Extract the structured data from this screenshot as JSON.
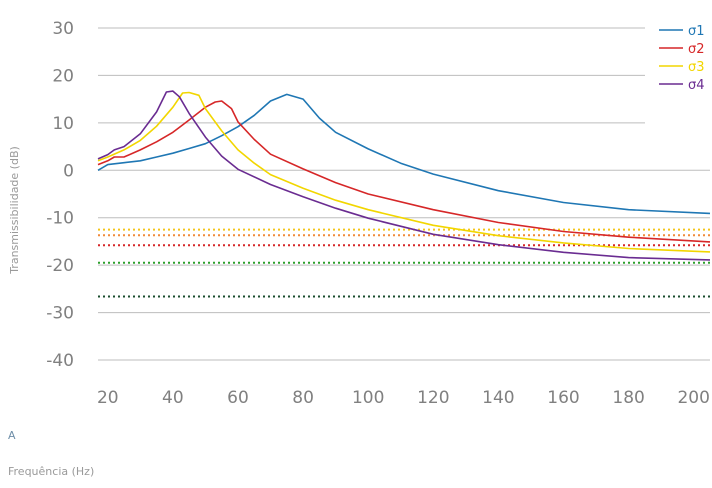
{
  "panel_letter": "A",
  "colors": {
    "grid": "#bdbdbd",
    "tick": "#8c8c8c",
    "axis_label": "#9a9a9a"
  },
  "chart_data": {
    "type": "line",
    "xlabel": "Frequência (Hz)",
    "ylabel": "Transmissibilidade (dB)",
    "xlim": [
      17,
      205
    ],
    "ylim": [
      -40,
      30
    ],
    "xticks": [
      20,
      40,
      60,
      80,
      100,
      120,
      140,
      160,
      180,
      200
    ],
    "yticks": [
      30,
      20,
      10,
      0,
      -10,
      -20,
      -30,
      -40
    ],
    "grid": "horizontal",
    "legend_position": "top-right",
    "series": [
      {
        "name": "σ1",
        "color": "#1f77b4",
        "x": [
          17,
          20,
          25,
          30,
          35,
          40,
          45,
          50,
          55,
          60,
          65,
          70,
          75,
          80,
          85,
          90,
          100,
          110,
          120,
          140,
          160,
          180,
          205
        ],
        "y": [
          0,
          1.2,
          1.6,
          2,
          2.8,
          3.6,
          4.6,
          5.6,
          7.3,
          9.2,
          11.6,
          14.6,
          16,
          15,
          11,
          8,
          4.5,
          1.5,
          -0.8,
          -4.3,
          -6.8,
          -8.3,
          -9.1
        ]
      },
      {
        "name": "σ2",
        "color": "#d62728",
        "x": [
          17,
          20,
          22,
          25,
          30,
          35,
          40,
          45,
          50,
          53,
          55,
          58,
          60,
          65,
          70,
          80,
          90,
          100,
          120,
          140,
          160,
          180,
          205
        ],
        "y": [
          1.2,
          2,
          2.8,
          2.8,
          4.3,
          6,
          8,
          10.6,
          13.3,
          14.4,
          14.6,
          13,
          10.2,
          6.5,
          3.4,
          0.3,
          -2.6,
          -5,
          -8.3,
          -11,
          -12.9,
          -14.1,
          -15.1
        ]
      },
      {
        "name": "σ3",
        "color": "#f2d600",
        "x": [
          17,
          20,
          25,
          30,
          35,
          40,
          43,
          45,
          48,
          50,
          55,
          60,
          65,
          70,
          80,
          90,
          100,
          120,
          140,
          160,
          180,
          205
        ],
        "y": [
          2,
          2.8,
          4.3,
          6.3,
          9.3,
          13.3,
          16.3,
          16.4,
          15.8,
          13,
          8.3,
          4.3,
          1.5,
          -0.9,
          -3.8,
          -6.3,
          -8.3,
          -11.6,
          -13.8,
          -15.3,
          -16.5,
          -17.2
        ]
      },
      {
        "name": "σ4",
        "color": "#6a2c91",
        "x": [
          17,
          20,
          22,
          25,
          30,
          35,
          38,
          40,
          42,
          45,
          50,
          55,
          60,
          70,
          80,
          90,
          100,
          120,
          140,
          160,
          180,
          205
        ],
        "y": [
          2.4,
          3.3,
          4.3,
          5,
          7.7,
          12.3,
          16.5,
          16.7,
          15.5,
          12,
          7,
          3,
          0.2,
          -3,
          -5.6,
          -8,
          -10.1,
          -13.5,
          -15.7,
          -17.3,
          -18.4,
          -18.9
        ]
      }
    ],
    "reference_lines": [
      {
        "y": -12.5,
        "color": "#f5c518",
        "style": "dotted"
      },
      {
        "y": -13.7,
        "color": "#f08a3a",
        "style": "dotted"
      },
      {
        "y": -15.8,
        "color": "#d62728",
        "style": "dotted"
      },
      {
        "y": -19.5,
        "color": "#2ca02c",
        "style": "dotted"
      },
      {
        "y": -26.6,
        "color": "#1a4d2e",
        "style": "dotted"
      }
    ]
  }
}
